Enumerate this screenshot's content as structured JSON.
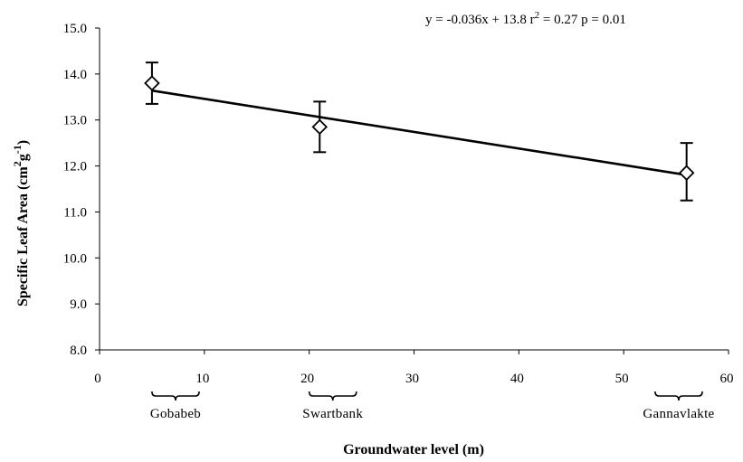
{
  "chart_data": {
    "type": "scatter",
    "title": "",
    "xlabel": "Groundwater level (m)",
    "ylabel": {
      "prefix": "Specific Leaf Area (cm",
      "sup1": "2",
      "mid": "g",
      "sup2": "-1",
      "suffix": ")"
    },
    "xlim": [
      0,
      60
    ],
    "ylim": [
      8.0,
      15.0
    ],
    "x_ticks": [
      0,
      10,
      20,
      30,
      40,
      50,
      60
    ],
    "x_tick_labels": [
      "0",
      "10",
      "20",
      "30",
      "40",
      "50",
      "60"
    ],
    "y_ticks": [
      8.0,
      9.0,
      10.0,
      11.0,
      12.0,
      13.0,
      14.0,
      15.0
    ],
    "y_tick_labels": [
      "8.0",
      "9.0",
      "10.0",
      "11.0",
      "12.0",
      "13.0",
      "14.0",
      "15.0"
    ],
    "grid": false,
    "points": [
      {
        "x": 5,
        "y": 13.8,
        "err_low": 13.35,
        "err_high": 14.25
      },
      {
        "x": 21,
        "y": 12.85,
        "err_low": 12.3,
        "err_high": 13.4
      },
      {
        "x": 56,
        "y": 11.85,
        "err_low": 11.25,
        "err_high": 12.5
      }
    ],
    "trendline": {
      "slope": -0.036,
      "intercept": 13.82,
      "x_start": 5,
      "x_end": 56
    },
    "equation": {
      "part1": "y = -0.036x + 13.8 r",
      "sup": "2",
      "part2": " = 0.27 p = 0.01"
    },
    "sites": [
      {
        "label": "Gobabeb",
        "from": 5,
        "to": 9.5
      },
      {
        "label": "Swartbank",
        "from": 20,
        "to": 24.5
      },
      {
        "label": "Gannavlakte",
        "from": 53,
        "to": 57.5
      }
    ]
  }
}
